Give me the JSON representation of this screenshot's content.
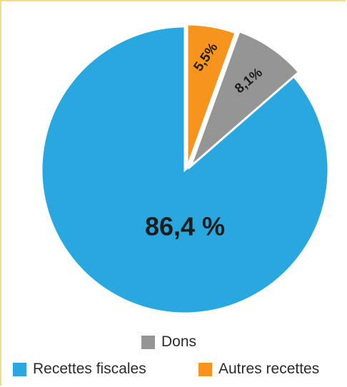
{
  "chart_data": {
    "type": "pie",
    "title": "",
    "slices": [
      {
        "name": "Recettes fiscales",
        "value": 86.4,
        "label": "86,4 %",
        "color": "#29a8e0"
      },
      {
        "name": "Autres recettes",
        "value": 5.5,
        "label": "5,5%",
        "color": "#f7941d"
      },
      {
        "name": "Dons",
        "value": 8.1,
        "label": "8,1%",
        "color": "#959595"
      }
    ],
    "legend": {
      "dons": "Dons",
      "fiscal": "Recettes fiscales",
      "autres": "Autres recettes"
    },
    "legend_placement": "bottom"
  }
}
